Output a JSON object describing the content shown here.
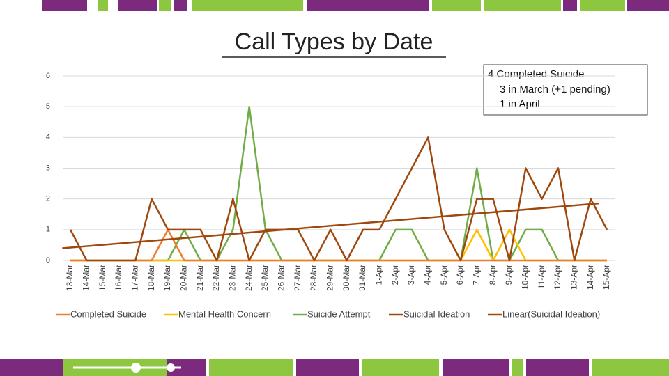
{
  "chart_data": {
    "type": "line",
    "title": "Call Types by Date",
    "categories": [
      "13-Mar",
      "14-Mar",
      "15-Mar",
      "16-Mar",
      "17-Mar",
      "18-Mar",
      "19-Mar",
      "20-Mar",
      "21-Mar",
      "22-Mar",
      "23-Mar",
      "24-Mar",
      "25-Mar",
      "26-Mar",
      "27-Mar",
      "28-Mar",
      "29-Mar",
      "30-Mar",
      "31-Mar",
      "1-Apr",
      "2-Apr",
      "3-Apr",
      "4-Apr",
      "5-Apr",
      "6-Apr",
      "7-Apr",
      "8-Apr",
      "9-Apr",
      "10-Apr",
      "11-Apr",
      "12-Apr",
      "13-Apr",
      "14-Apr",
      "15-Apr"
    ],
    "series": [
      {
        "name": "Completed Suicide",
        "color": "#ed7d31",
        "values": [
          0,
          0,
          0,
          0,
          0,
          0,
          1,
          0,
          0,
          0,
          0,
          0,
          0,
          0,
          0,
          0,
          0,
          0,
          0,
          0,
          0,
          0,
          0,
          0,
          0,
          0,
          0,
          0,
          0,
          0,
          0,
          0,
          0,
          0
        ]
      },
      {
        "name": "Mental Health Concern",
        "color": "#ffc000",
        "values": [
          0,
          0,
          0,
          0,
          0,
          0,
          0,
          0,
          0,
          0,
          0,
          0,
          0,
          0,
          0,
          0,
          0,
          0,
          0,
          0,
          0,
          0,
          0,
          0,
          0,
          1,
          0,
          1,
          0,
          0,
          0,
          0,
          0,
          0
        ]
      },
      {
        "name": "Suicide Attempt",
        "color": "#70ad47",
        "values": [
          0,
          0,
          0,
          0,
          0,
          0,
          0,
          1,
          0,
          0,
          1,
          5,
          1,
          0,
          0,
          0,
          0,
          0,
          0,
          0,
          1,
          1,
          0,
          0,
          0,
          3,
          0,
          0,
          1,
          1,
          0,
          0,
          0,
          0
        ]
      },
      {
        "name": "Suicidal Ideation",
        "color": "#9e480e",
        "values": [
          1,
          0,
          0,
          0,
          0,
          2,
          1,
          1,
          1,
          0,
          2,
          0,
          1,
          1,
          1,
          0,
          1,
          0,
          1,
          1,
          2,
          3,
          4,
          1,
          0,
          2,
          2,
          0,
          3,
          2,
          3,
          0,
          2,
          1
        ],
        "trendline": {
          "type": "linear",
          "name": "Linear(Suicidal Ideation)"
        }
      }
    ],
    "ylim": [
      0,
      6
    ],
    "yticks": [
      0,
      1,
      2,
      3,
      4,
      5,
      6
    ],
    "grid": true,
    "annotation": [
      "4 Completed Suicide",
      "3 in March (+1 pending)",
      "1 in April"
    ]
  }
}
